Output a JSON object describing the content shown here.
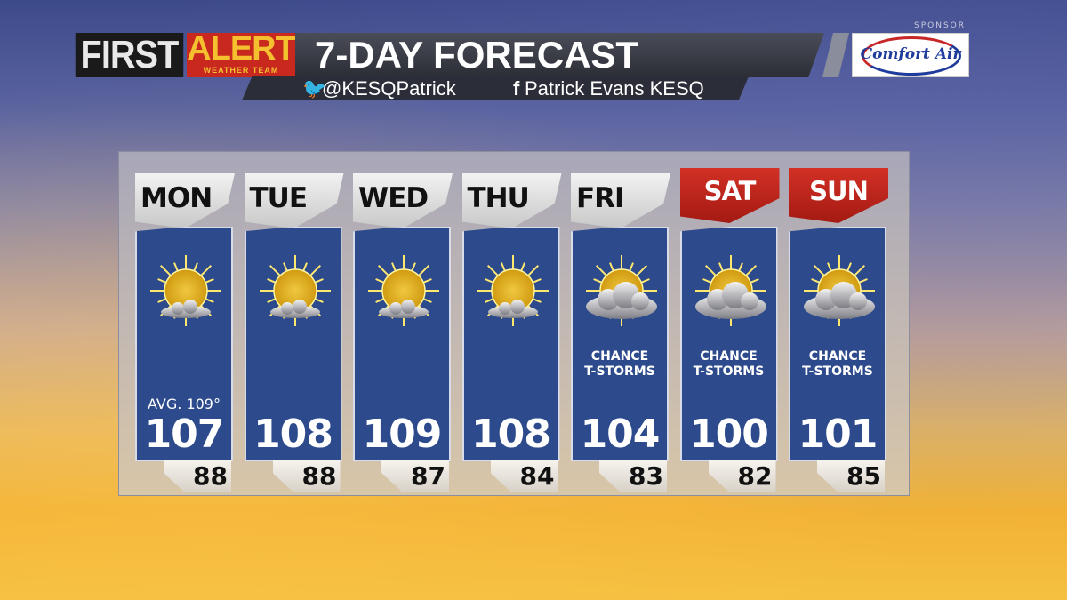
{
  "header": {
    "brand_first": "FIRST",
    "brand_alert": "ALERT",
    "brand_team": "WEATHER TEAM",
    "title": "7-DAY FORECAST",
    "twitter_icon": "twitter-icon",
    "twitter": "@KESQPatrick",
    "facebook_icon": "facebook-icon",
    "facebook": "Patrick Evans KESQ"
  },
  "sponsor": {
    "label": "SPONSOR",
    "name": "Comfort Air"
  },
  "colors": {
    "panel": "#2c4a8c",
    "weekend_tab": "#c0241a",
    "weekday_tab": "#e0e0e0"
  },
  "days": [
    {
      "day": "MON",
      "icon": "mostly-sunny",
      "condition": "",
      "avg": "AVG. 109°",
      "high": "107",
      "low": "88",
      "weekend": false
    },
    {
      "day": "TUE",
      "icon": "mostly-sunny",
      "condition": "",
      "avg": "",
      "high": "108",
      "low": "88",
      "weekend": false
    },
    {
      "day": "WED",
      "icon": "mostly-sunny",
      "condition": "",
      "avg": "",
      "high": "109",
      "low": "87",
      "weekend": false
    },
    {
      "day": "THU",
      "icon": "mostly-sunny",
      "condition": "",
      "avg": "",
      "high": "108",
      "low": "84",
      "weekend": false
    },
    {
      "day": "FRI",
      "icon": "partly-cloudy",
      "condition": "CHANCE T-STORMS",
      "avg": "",
      "high": "104",
      "low": "83",
      "weekend": false
    },
    {
      "day": "SAT",
      "icon": "partly-cloudy",
      "condition": "CHANCE T-STORMS",
      "avg": "",
      "high": "100",
      "low": "82",
      "weekend": true
    },
    {
      "day": "SUN",
      "icon": "partly-cloudy",
      "condition": "CHANCE T-STORMS",
      "avg": "",
      "high": "101",
      "low": "85",
      "weekend": true
    }
  ]
}
